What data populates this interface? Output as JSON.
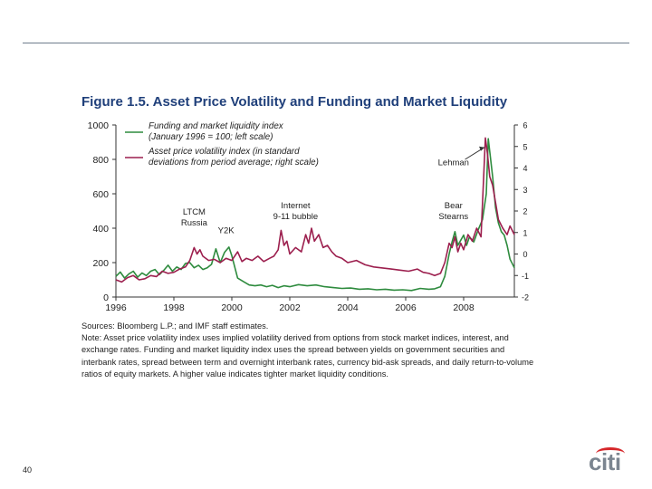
{
  "slide": {
    "page_number": "40",
    "brand": "citi",
    "colors": {
      "rule": "#6f7d8c",
      "title": "#1f3f7a",
      "brand_arc": "#d6282b",
      "brand_text": "#7b8590"
    }
  },
  "notes": {
    "sources": "Sources: Bloomberg L.P.; and IMF staff estimates.",
    "note": "Note: Asset price volatility index uses implied volatility derived from options from stock market indices, interest, and exchange rates. Funding and market liquidity index uses the spread between yields on government securities and interbank rates, spread between term and overnight interbank rates, currency bid-ask spreads, and daily return-to-volume ratios of equity markets. A higher value indicates tighter market liquidity conditions."
  },
  "chart_data": {
    "type": "line",
    "title": "Figure 1.5. Asset Price Volatility and Funding and Market Liquidity",
    "x_ticks": [
      "1996",
      "1998",
      "2000",
      "2002",
      "2004",
      "2006",
      "2008"
    ],
    "x_range": [
      1996,
      2009.75
    ],
    "y_left": {
      "range": [
        0,
        1000
      ],
      "ticks": [
        "0",
        "200",
        "400",
        "600",
        "800",
        "1000"
      ]
    },
    "y_right": {
      "range": [
        -2,
        6
      ],
      "ticks": [
        "-2",
        "-1",
        "0",
        "1",
        "2",
        "3",
        "4",
        "5",
        "6"
      ]
    },
    "legend": [
      {
        "label_lines": [
          "Funding and market liquidity index",
          "(January 1996 = 100; left scale)"
        ],
        "color": "#2e8b3e"
      },
      {
        "label_lines": [
          "Asset price volatility index (in standard",
          "deviations from period average; right scale)"
        ],
        "color": "#9c1f4e"
      }
    ],
    "annotations": [
      {
        "lines": [
          "LTCM",
          "Russia"
        ],
        "x": 1998.7,
        "y_left": 480
      },
      {
        "lines": [
          "Y2K"
        ],
        "x": 1999.8,
        "y_left": 370
      },
      {
        "lines": [
          "Internet",
          "9-11  bubble"
        ],
        "x": 2002.2,
        "y_left": 515
      },
      {
        "lines": [
          "Bear",
          "Stearns"
        ],
        "x": 2007.65,
        "y_left": 515
      },
      {
        "lines": [
          "Lehman"
        ],
        "x": 2007.65,
        "y_left": 765
      }
    ],
    "series": [
      {
        "name": "Funding and market liquidity index",
        "axis": "left",
        "color": "#2e8b3e",
        "points": [
          [
            1996.0,
            120
          ],
          [
            1996.15,
            145
          ],
          [
            1996.3,
            110
          ],
          [
            1996.45,
            135
          ],
          [
            1996.6,
            150
          ],
          [
            1996.75,
            115
          ],
          [
            1996.9,
            140
          ],
          [
            1997.05,
            125
          ],
          [
            1997.2,
            150
          ],
          [
            1997.35,
            160
          ],
          [
            1997.5,
            130
          ],
          [
            1997.65,
            155
          ],
          [
            1997.8,
            185
          ],
          [
            1997.95,
            150
          ],
          [
            1998.1,
            175
          ],
          [
            1998.25,
            160
          ],
          [
            1998.4,
            195
          ],
          [
            1998.55,
            200
          ],
          [
            1998.7,
            170
          ],
          [
            1998.85,
            185
          ],
          [
            1999.0,
            160
          ],
          [
            1999.15,
            170
          ],
          [
            1999.3,
            190
          ],
          [
            1999.45,
            280
          ],
          [
            1999.6,
            200
          ],
          [
            1999.75,
            260
          ],
          [
            1999.9,
            290
          ],
          [
            2000.0,
            240
          ],
          [
            2000.2,
            110
          ],
          [
            2000.4,
            90
          ],
          [
            2000.6,
            70
          ],
          [
            2000.8,
            65
          ],
          [
            2001.0,
            70
          ],
          [
            2001.2,
            60
          ],
          [
            2001.4,
            68
          ],
          [
            2001.6,
            55
          ],
          [
            2001.8,
            65
          ],
          [
            2002.0,
            60
          ],
          [
            2002.3,
            72
          ],
          [
            2002.6,
            65
          ],
          [
            2002.9,
            70
          ],
          [
            2003.2,
            60
          ],
          [
            2003.5,
            55
          ],
          [
            2003.8,
            50
          ],
          [
            2004.1,
            52
          ],
          [
            2004.4,
            45
          ],
          [
            2004.7,
            48
          ],
          [
            2005.0,
            42
          ],
          [
            2005.3,
            45
          ],
          [
            2005.6,
            40
          ],
          [
            2005.9,
            42
          ],
          [
            2006.2,
            38
          ],
          [
            2006.5,
            50
          ],
          [
            2006.8,
            45
          ],
          [
            2007.0,
            48
          ],
          [
            2007.2,
            60
          ],
          [
            2007.35,
            120
          ],
          [
            2007.5,
            250
          ],
          [
            2007.6,
            320
          ],
          [
            2007.7,
            380
          ],
          [
            2007.8,
            300
          ],
          [
            2007.9,
            330
          ],
          [
            2008.0,
            360
          ],
          [
            2008.1,
            300
          ],
          [
            2008.2,
            350
          ],
          [
            2008.35,
            320
          ],
          [
            2008.5,
            390
          ],
          [
            2008.65,
            450
          ],
          [
            2008.78,
            600
          ],
          [
            2008.85,
            920
          ],
          [
            2008.92,
            820
          ],
          [
            2009.0,
            700
          ],
          [
            2009.1,
            520
          ],
          [
            2009.2,
            430
          ],
          [
            2009.3,
            380
          ],
          [
            2009.4,
            360
          ],
          [
            2009.5,
            300
          ],
          [
            2009.6,
            220
          ],
          [
            2009.75,
            170
          ]
        ]
      },
      {
        "name": "Asset price volatility index",
        "axis": "right",
        "color": "#9c1f4e",
        "points": [
          [
            1996.0,
            -1.2
          ],
          [
            1996.2,
            -1.3
          ],
          [
            1996.4,
            -1.1
          ],
          [
            1996.6,
            -1.0
          ],
          [
            1996.8,
            -1.2
          ],
          [
            1997.0,
            -1.15
          ],
          [
            1997.2,
            -1.0
          ],
          [
            1997.4,
            -1.05
          ],
          [
            1997.6,
            -0.8
          ],
          [
            1997.8,
            -0.9
          ],
          [
            1998.0,
            -0.85
          ],
          [
            1998.2,
            -0.7
          ],
          [
            1998.4,
            -0.6
          ],
          [
            1998.55,
            -0.3
          ],
          [
            1998.7,
            0.3
          ],
          [
            1998.8,
            0.0
          ],
          [
            1998.9,
            0.2
          ],
          [
            1999.0,
            -0.1
          ],
          [
            1999.2,
            -0.3
          ],
          [
            1999.4,
            -0.25
          ],
          [
            1999.6,
            -0.4
          ],
          [
            1999.8,
            -0.2
          ],
          [
            2000.0,
            -0.3
          ],
          [
            2000.2,
            0.1
          ],
          [
            2000.35,
            -0.35
          ],
          [
            2000.5,
            -0.2
          ],
          [
            2000.7,
            -0.3
          ],
          [
            2000.9,
            -0.1
          ],
          [
            2001.1,
            -0.35
          ],
          [
            2001.3,
            -0.2
          ],
          [
            2001.45,
            -0.1
          ],
          [
            2001.6,
            0.2
          ],
          [
            2001.7,
            1.1
          ],
          [
            2001.8,
            0.4
          ],
          [
            2001.9,
            0.6
          ],
          [
            2002.0,
            0.0
          ],
          [
            2002.2,
            0.3
          ],
          [
            2002.4,
            0.1
          ],
          [
            2002.55,
            0.9
          ],
          [
            2002.65,
            0.5
          ],
          [
            2002.75,
            1.2
          ],
          [
            2002.85,
            0.6
          ],
          [
            2003.0,
            0.9
          ],
          [
            2003.15,
            0.3
          ],
          [
            2003.3,
            0.4
          ],
          [
            2003.45,
            0.1
          ],
          [
            2003.6,
            -0.1
          ],
          [
            2003.8,
            -0.2
          ],
          [
            2004.0,
            -0.4
          ],
          [
            2004.3,
            -0.3
          ],
          [
            2004.6,
            -0.5
          ],
          [
            2004.9,
            -0.6
          ],
          [
            2005.2,
            -0.65
          ],
          [
            2005.5,
            -0.7
          ],
          [
            2005.8,
            -0.75
          ],
          [
            2006.1,
            -0.8
          ],
          [
            2006.4,
            -0.7
          ],
          [
            2006.6,
            -0.85
          ],
          [
            2006.8,
            -0.9
          ],
          [
            2007.0,
            -1.0
          ],
          [
            2007.2,
            -0.9
          ],
          [
            2007.35,
            -0.4
          ],
          [
            2007.5,
            0.5
          ],
          [
            2007.6,
            0.3
          ],
          [
            2007.7,
            0.8
          ],
          [
            2007.8,
            0.1
          ],
          [
            2007.9,
            0.5
          ],
          [
            2008.0,
            0.2
          ],
          [
            2008.15,
            0.9
          ],
          [
            2008.3,
            0.6
          ],
          [
            2008.45,
            1.2
          ],
          [
            2008.6,
            0.8
          ],
          [
            2008.75,
            5.4
          ],
          [
            2008.82,
            4.7
          ],
          [
            2008.9,
            3.6
          ],
          [
            2009.0,
            3.2
          ],
          [
            2009.1,
            2.4
          ],
          [
            2009.2,
            1.6
          ],
          [
            2009.35,
            1.2
          ],
          [
            2009.5,
            0.9
          ],
          [
            2009.6,
            1.3
          ],
          [
            2009.75,
            0.9
          ]
        ]
      }
    ]
  }
}
